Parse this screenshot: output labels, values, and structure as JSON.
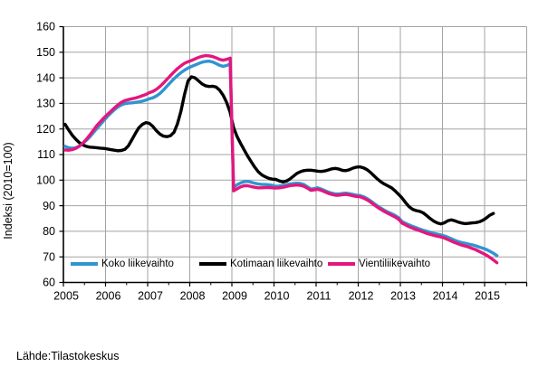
{
  "page": {
    "background": "#ffffff",
    "source_note": "Lähde:Tilastokeskus"
  },
  "chart_data": {
    "type": "line",
    "title": "",
    "xlabel": "",
    "ylabel": "Indeksi (2010=100)",
    "ylim": [
      60,
      160
    ],
    "ytick_step": 10,
    "grid": true,
    "legend_position": "bottom-inside",
    "x_tick_labels": [
      "2005",
      "2006",
      "2007",
      "2008",
      "2009",
      "2010",
      "2011",
      "2012",
      "2013",
      "2014",
      "2015"
    ],
    "x_start": {
      "year": 2005,
      "month": 1
    },
    "x_frequency": "monthly",
    "colors": {
      "axis": "#000000",
      "grid": "#a3a3a3"
    },
    "series": [
      {
        "name": "Koko liikevaihto",
        "color": "#3194d0",
        "values": [
          113.2,
          112.7,
          112.5,
          112.7,
          113.3,
          114.3,
          115.5,
          116.9,
          118.5,
          120.1,
          121.7,
          123.3,
          124.8,
          126.2,
          127.5,
          128.6,
          129.4,
          129.9,
          130.1,
          130.2,
          130.4,
          130.6,
          130.9,
          131.3,
          131.8,
          132.2,
          132.9,
          133.9,
          135.2,
          136.7,
          138.2,
          139.6,
          140.9,
          142.0,
          143.0,
          143.8,
          144.4,
          145.0,
          145.6,
          146.1,
          146.4,
          146.5,
          146.2,
          145.6,
          144.9,
          144.5,
          144.8,
          145.4,
          97.2,
          98.2,
          98.9,
          99.4,
          99.5,
          99.2,
          98.8,
          98.5,
          98.3,
          98.3,
          98.2,
          98.0,
          97.6,
          97.7,
          97.9,
          98.2,
          98.5,
          98.7,
          98.8,
          98.7,
          98.3,
          97.4,
          96.5,
          96.7,
          97.0,
          96.5,
          95.9,
          95.3,
          94.9,
          94.6,
          94.6,
          94.8,
          94.9,
          94.7,
          94.4,
          94.1,
          94.0,
          93.5,
          92.8,
          91.9,
          90.9,
          89.9,
          89.0,
          88.2,
          87.5,
          86.9,
          86.2,
          85.3,
          83.8,
          83.1,
          82.5,
          81.9,
          81.4,
          80.9,
          80.4,
          80.0,
          79.6,
          79.2,
          78.9,
          78.6,
          78.2,
          77.7,
          77.1,
          76.5,
          76.0,
          75.6,
          75.3,
          75.0,
          74.7,
          74.3,
          73.8,
          73.4,
          72.9,
          72.2,
          71.4,
          70.5
        ]
      },
      {
        "name": "Kotimaan liikevaihto",
        "color": "#000000",
        "values": [
          121.8,
          119.6,
          117.6,
          116.0,
          114.7,
          113.8,
          113.2,
          112.9,
          112.8,
          112.7,
          112.5,
          112.4,
          112.2,
          111.9,
          111.7,
          111.5,
          111.6,
          112.0,
          113.4,
          115.8,
          118.2,
          120.5,
          121.8,
          122.5,
          122.2,
          121.0,
          119.3,
          118.0,
          117.2,
          117.0,
          117.4,
          118.7,
          122.0,
          127.0,
          133.5,
          138.8,
          140.4,
          140.0,
          138.8,
          137.6,
          136.9,
          136.6,
          136.7,
          136.4,
          135.2,
          133.2,
          130.4,
          126.5,
          120.5,
          117.0,
          114.3,
          111.8,
          109.4,
          107.2,
          105.1,
          103.3,
          102.1,
          101.3,
          100.7,
          100.4,
          100.3,
          99.7,
          99.3,
          99.6,
          100.4,
          101.5,
          102.6,
          103.3,
          103.7,
          103.9,
          103.9,
          103.7,
          103.5,
          103.4,
          103.6,
          104.0,
          104.4,
          104.6,
          104.3,
          103.8,
          103.7,
          104.1,
          104.7,
          105.1,
          105.2,
          104.8,
          104.1,
          103.0,
          101.7,
          100.4,
          99.3,
          98.4,
          97.7,
          97.0,
          95.8,
          94.4,
          93.0,
          91.2,
          89.6,
          88.6,
          88.1,
          87.8,
          87.2,
          86.1,
          85.0,
          84.0,
          83.3,
          82.9,
          83.3,
          84.1,
          84.5,
          84.1,
          83.6,
          83.2,
          83.0,
          83.1,
          83.3,
          83.4,
          83.7,
          84.3,
          85.2,
          86.3,
          87.0
        ]
      },
      {
        "name": "Vientiliikevaihto",
        "color": "#e3177d",
        "values": [
          111.8,
          111.7,
          111.9,
          112.4,
          113.2,
          114.4,
          115.9,
          117.6,
          119.4,
          121.3,
          122.8,
          124.3,
          125.6,
          126.9,
          128.2,
          129.4,
          130.4,
          131.1,
          131.5,
          131.8,
          132.1,
          132.5,
          133.0,
          133.5,
          134.2,
          134.7,
          135.5,
          136.6,
          137.9,
          139.4,
          140.9,
          142.3,
          143.6,
          144.7,
          145.7,
          146.3,
          146.8,
          147.4,
          148.0,
          148.4,
          148.7,
          148.6,
          148.3,
          147.8,
          147.2,
          146.9,
          147.2,
          147.7,
          95.8,
          96.6,
          97.4,
          97.8,
          97.8,
          97.5,
          97.2,
          97.0,
          97.0,
          97.1,
          97.1,
          97.0,
          96.9,
          97.0,
          97.2,
          97.5,
          97.8,
          98.0,
          98.1,
          98.0,
          97.6,
          96.9,
          96.0,
          96.2,
          96.4,
          96.0,
          95.4,
          94.8,
          94.4,
          94.1,
          94.1,
          94.3,
          94.4,
          94.2,
          93.9,
          93.6,
          93.5,
          93.0,
          92.3,
          91.4,
          90.4,
          89.4,
          88.5,
          87.7,
          87.0,
          86.3,
          85.6,
          84.7,
          83.2,
          82.5,
          81.8,
          81.2,
          80.7,
          80.2,
          79.7,
          79.2,
          78.8,
          78.4,
          78.1,
          77.8,
          77.4,
          76.8,
          76.2,
          75.6,
          75.1,
          74.6,
          74.2,
          73.8,
          73.3,
          72.8,
          72.1,
          71.4,
          70.7,
          69.8,
          68.8,
          67.7
        ]
      }
    ]
  }
}
